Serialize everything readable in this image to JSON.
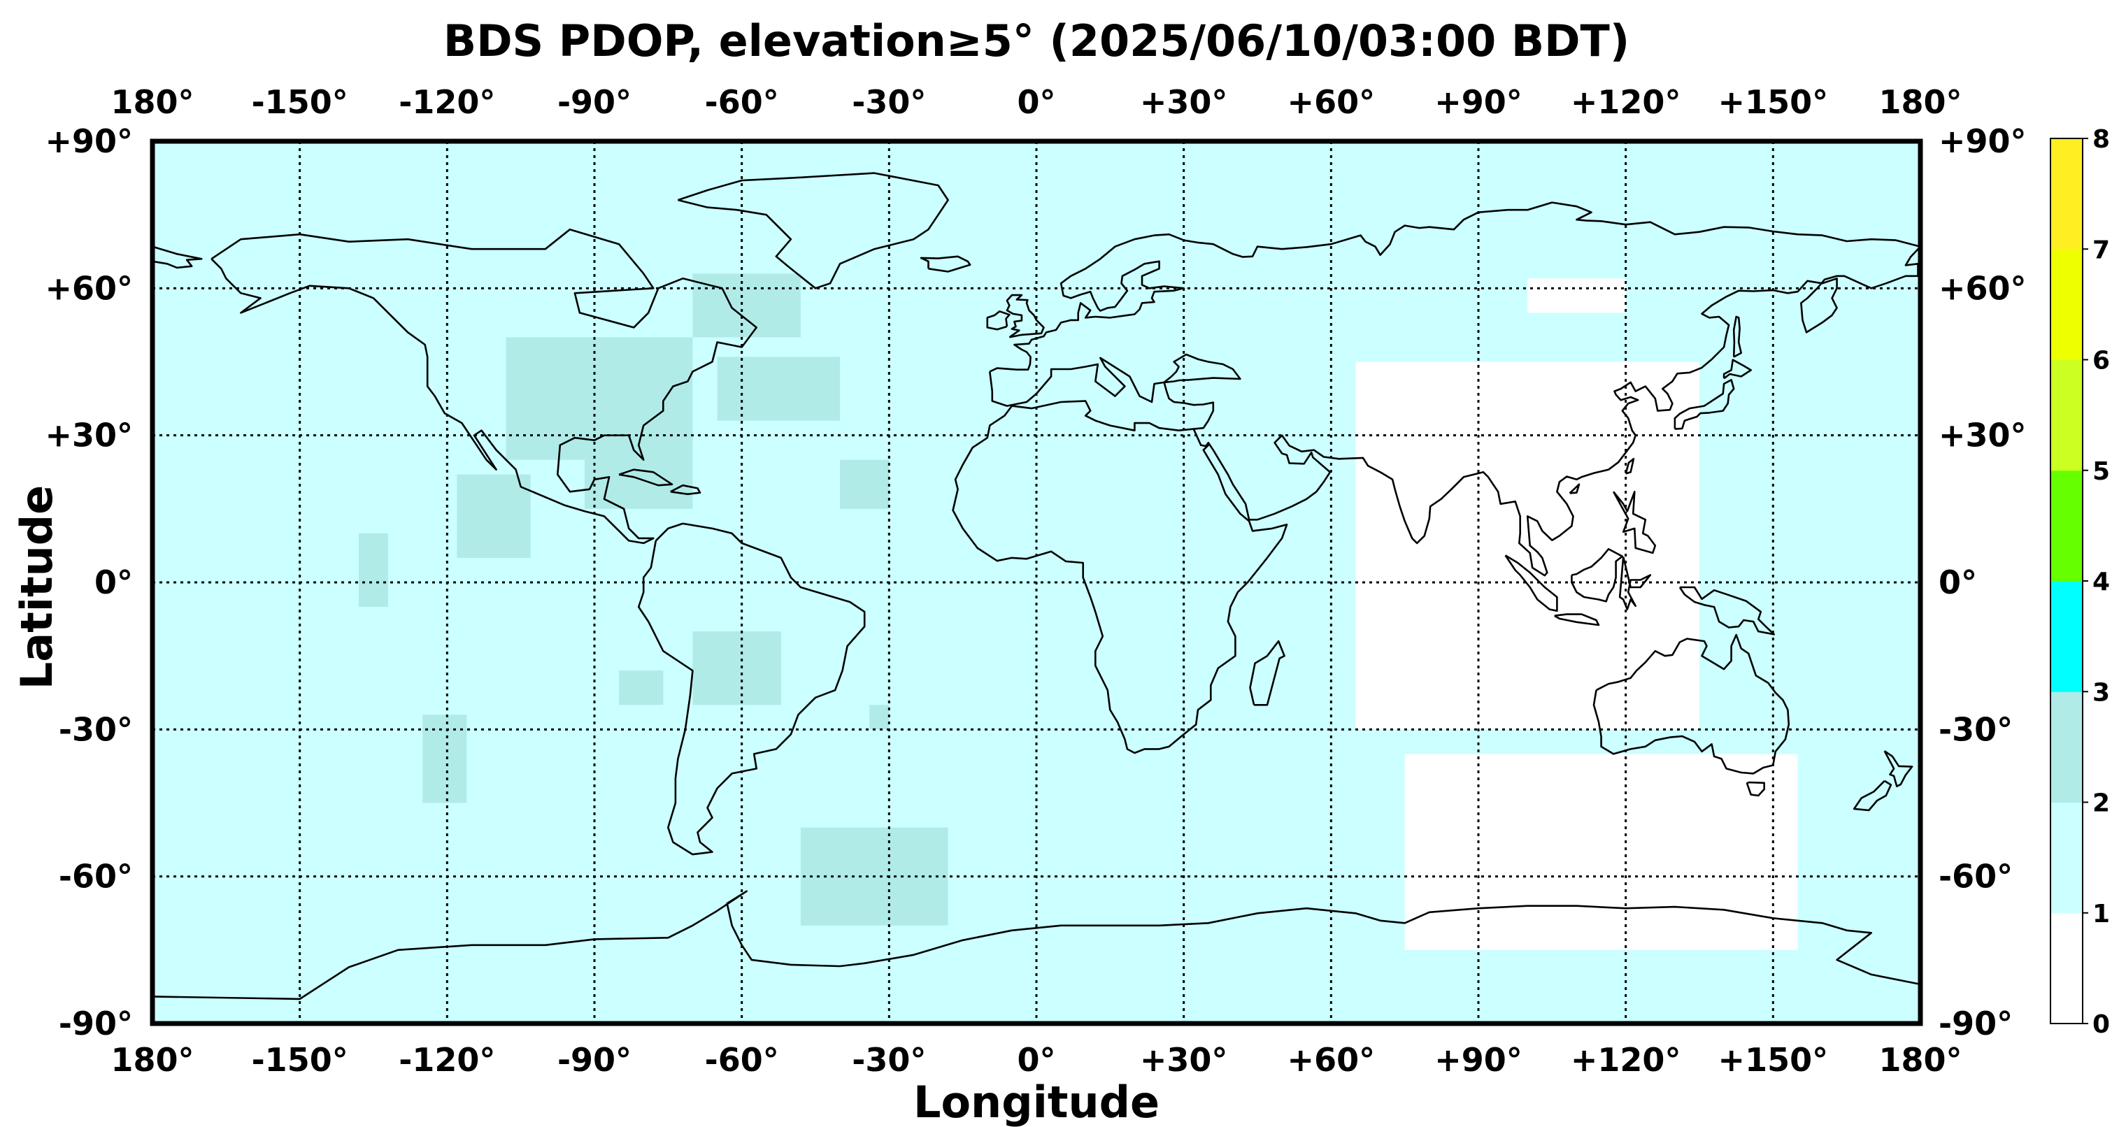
{
  "title": "BDS PDOP, elevation≥5° (2025/06/10/03:00 BDT)",
  "x_axis_label": "Longitude",
  "y_axis_label": "Latitude",
  "lon_ticks": [
    "180°",
    "-150°",
    "-120°",
    "-90°",
    "-60°",
    "-30°",
    "0°",
    "+30°",
    "+60°",
    "+90°",
    "+120°",
    "+150°",
    "180°"
  ],
  "lat_ticks": [
    "+90°",
    "+60°",
    "+30°",
    "0°",
    "-30°",
    "-60°",
    "-90°"
  ],
  "colorbar": {
    "ticks": [
      "0",
      "1",
      "2",
      "3",
      "4",
      "5",
      "6",
      "7",
      "8"
    ],
    "colors": [
      "#ffffff",
      "#ccffff",
      "#b0ebe8",
      "#00ffff",
      "#66ff00",
      "#ccff22",
      "#eeff00",
      "#ffee22"
    ]
  },
  "chart_data": {
    "type": "heatmap",
    "title": "BDS PDOP, elevation≥5° (2025/06/10/03:00 BDT)",
    "xlabel": "Longitude",
    "ylabel": "Latitude",
    "xlim": [
      -180,
      180
    ],
    "ylim": [
      -90,
      90
    ],
    "grid": true,
    "colorbar_range": [
      0,
      8
    ],
    "background_level": "1-2",
    "regions": [
      {
        "level": "2-3",
        "name": "North America central/east",
        "lon": [
          -108,
          -70
        ],
        "lat": [
          25,
          50
        ]
      },
      {
        "level": "2-3",
        "name": "Labrador Sea / SW Greenland",
        "lon": [
          -70,
          -48
        ],
        "lat": [
          50,
          63
        ]
      },
      {
        "level": "2-3",
        "name": "Western Atlantic",
        "lon": [
          -65,
          -40
        ],
        "lat": [
          33,
          46
        ]
      },
      {
        "level": "2-3",
        "name": "Western Caribbean",
        "lon": [
          -92,
          -70
        ],
        "lat": [
          15,
          27
        ]
      },
      {
        "level": "2-3",
        "name": "Central Atlantic",
        "lon": [
          -40,
          -30
        ],
        "lat": [
          15,
          25
        ]
      },
      {
        "level": "2-3",
        "name": "Eastern Pacific off Mexico",
        "lon": [
          -118,
          -103
        ],
        "lat": [
          5,
          22
        ]
      },
      {
        "level": "2-3",
        "name": "Central Pacific",
        "lon": [
          -138,
          -132
        ],
        "lat": [
          -5,
          10
        ]
      },
      {
        "level": "2-3",
        "name": "Amazon basin",
        "lon": [
          -70,
          -52
        ],
        "lat": [
          -25,
          -10
        ]
      },
      {
        "level": "2-3",
        "name": "South America west",
        "lon": [
          -85,
          -76
        ],
        "lat": [
          -25,
          -18
        ]
      },
      {
        "level": "2-3",
        "name": "South Pacific",
        "lon": [
          -125,
          -116
        ],
        "lat": [
          -45,
          -27
        ]
      },
      {
        "level": "2-3",
        "name": "South Atlantic",
        "lon": [
          -34,
          -30
        ],
        "lat": [
          -30,
          -25
        ]
      },
      {
        "level": "2-3",
        "name": "South Atlantic / Weddell",
        "lon": [
          -48,
          -18
        ],
        "lat": [
          -70,
          -50
        ]
      },
      {
        "level": "0-1",
        "name": "Indian Ocean / Southeast Asia",
        "lon": [
          65,
          135
        ],
        "lat": [
          -30,
          45
        ]
      },
      {
        "level": "0-1",
        "name": "Southern Ocean south of Australia",
        "lon": [
          75,
          155
        ],
        "lat": [
          -75,
          -35
        ]
      },
      {
        "level": "0-1",
        "name": "North Asia patch",
        "lon": [
          100,
          120
        ],
        "lat": [
          55,
          62
        ]
      }
    ]
  }
}
